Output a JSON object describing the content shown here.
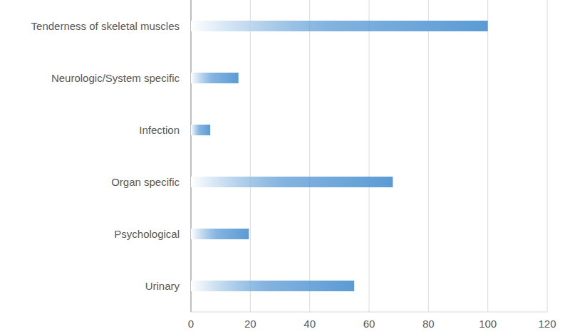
{
  "chart_data": {
    "type": "bar",
    "orientation": "horizontal",
    "categories": [
      "Tenderness of skeletal muscles",
      "Neurologic/System specific",
      "Infection",
      "Organ specific",
      "Psychological",
      "Urinary"
    ],
    "values": [
      100,
      16,
      6.5,
      68,
      19.5,
      55
    ],
    "color": "#5b9bd5",
    "xlim": [
      0,
      120
    ],
    "xticks": [
      0,
      20,
      40,
      60,
      80,
      100,
      120
    ],
    "grid": true
  }
}
